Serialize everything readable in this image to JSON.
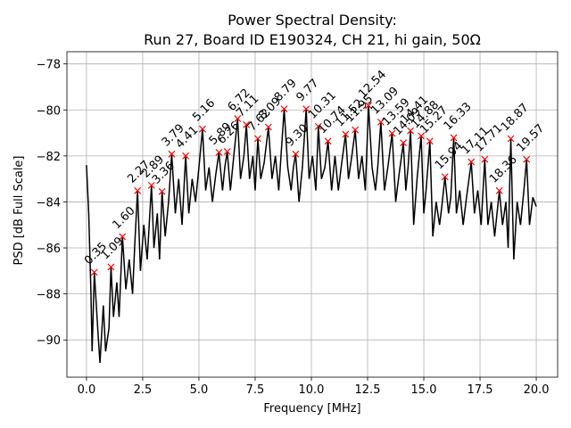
{
  "chart_data": {
    "type": "line",
    "title": "Power Spectral Density:",
    "subtitle": "Run 27, Board ID E190324, CH 21, hi gain, 50Ω",
    "xlabel": "Frequency [MHz]",
    "ylabel": "PSD [dB Full Scale]",
    "color": "#000000",
    "x": [
      0.0,
      0.1,
      0.2,
      0.25,
      0.35,
      0.5,
      0.6,
      0.75,
      0.85,
      1.0,
      1.09,
      1.2,
      1.35,
      1.45,
      1.6,
      1.75,
      1.9,
      2.05,
      2.15,
      2.27,
      2.4,
      2.55,
      2.7,
      2.89,
      3.0,
      3.15,
      3.25,
      3.36,
      3.5,
      3.65,
      3.79,
      3.95,
      4.1,
      4.25,
      4.41,
      4.55,
      4.7,
      4.85,
      5.0,
      5.16,
      5.3,
      5.45,
      5.6,
      5.75,
      5.89,
      6.05,
      6.15,
      6.26,
      6.4,
      6.55,
      6.72,
      6.85,
      7.0,
      7.11,
      7.25,
      7.4,
      7.5,
      7.62,
      7.75,
      7.9,
      8.09,
      8.25,
      8.4,
      8.55,
      8.65,
      8.79,
      8.95,
      9.1,
      9.2,
      9.3,
      9.45,
      9.6,
      9.77,
      9.9,
      10.05,
      10.2,
      10.31,
      10.45,
      10.6,
      10.74,
      10.9,
      11.05,
      11.2,
      11.35,
      11.52,
      11.65,
      11.8,
      11.95,
      12.1,
      12.25,
      12.4,
      12.54,
      12.7,
      12.85,
      12.95,
      13.09,
      13.25,
      13.4,
      13.59,
      13.75,
      13.9,
      14.09,
      14.2,
      14.3,
      14.41,
      14.55,
      14.7,
      14.88,
      15.0,
      15.1,
      15.27,
      15.4,
      15.55,
      15.7,
      15.8,
      15.94,
      16.1,
      16.2,
      16.33,
      16.45,
      16.6,
      16.75,
      16.9,
      17.11,
      17.25,
      17.4,
      17.55,
      17.71,
      17.85,
      18.0,
      18.15,
      18.36,
      18.5,
      18.65,
      18.75,
      18.87,
      19.0,
      19.15,
      19.3,
      19.45,
      19.57,
      19.7,
      19.85,
      20.0
    ],
    "values": [
      -82.4,
      -84.5,
      -88,
      -90.5,
      -87.06,
      -89.5,
      -91.0,
      -88.5,
      -90.5,
      -89.5,
      -86.83,
      -89.0,
      -87.5,
      -89.0,
      -85.51,
      -87.8,
      -86.5,
      -88.0,
      -85.8,
      -83.51,
      -87.0,
      -85.0,
      -86.5,
      -83.28,
      -86.0,
      -84.5,
      -86.5,
      -83.55,
      -85.5,
      -84.0,
      -81.92,
      -84.5,
      -83.0,
      -85.0,
      -82.0,
      -84.5,
      -83.0,
      -84.0,
      -82.5,
      -80.83,
      -83.5,
      -82.5,
      -84.0,
      -82.8,
      -81.85,
      -83.5,
      -82.5,
      -81.81,
      -83.5,
      -82.0,
      -80.38,
      -83.0,
      -82.0,
      -80.64,
      -83.0,
      -82.0,
      -83.5,
      -81.25,
      -83.0,
      -82.3,
      -80.75,
      -83.0,
      -82.0,
      -83.5,
      -82.0,
      -79.96,
      -82.5,
      -83.5,
      -82.5,
      -81.92,
      -84.0,
      -82.5,
      -79.96,
      -83.0,
      -82.0,
      -83.5,
      -80.72,
      -83.0,
      -82.5,
      -81.36,
      -83.5,
      -82.0,
      -83.5,
      -82.3,
      -81.06,
      -83.0,
      -82.0,
      -80.87,
      -83.0,
      -82.0,
      -83.5,
      -79.81,
      -82.5,
      -83.5,
      -82.5,
      -80.53,
      -83.5,
      -82.5,
      -81.02,
      -84.0,
      -82.8,
      -81.43,
      -83.5,
      -82.5,
      -80.91,
      -85.0,
      -83.0,
      -81.13,
      -84.5,
      -83.5,
      -81.36,
      -85.5,
      -84.0,
      -85.0,
      -84.2,
      -82.91,
      -84.5,
      -83.8,
      -81.21,
      -84.5,
      -83.5,
      -85.0,
      -83.8,
      -82.26,
      -84.5,
      -83.5,
      -85.0,
      -82.15,
      -85.0,
      -84.0,
      -85.5,
      -83.51,
      -85.0,
      -84.0,
      -86.0,
      -81.25,
      -86.5,
      -84.0,
      -85.0,
      -83.5,
      -82.15,
      -85.0,
      -83.8,
      -84.2
    ],
    "peaks": {
      "color": "#ff0000",
      "x": [
        0.35,
        1.09,
        1.6,
        2.27,
        2.89,
        3.36,
        3.79,
        4.41,
        5.16,
        5.89,
        6.26,
        6.72,
        7.11,
        7.62,
        8.09,
        8.79,
        9.3,
        9.77,
        10.31,
        10.74,
        11.52,
        11.95,
        12.54,
        13.09,
        13.59,
        14.09,
        14.41,
        14.88,
        15.27,
        15.94,
        16.33,
        17.11,
        17.71,
        18.36,
        18.87,
        19.57
      ],
      "values": [
        -87.06,
        -86.83,
        -85.51,
        -83.51,
        -83.28,
        -83.55,
        -81.92,
        -82.0,
        -80.83,
        -81.85,
        -81.81,
        -80.38,
        -80.64,
        -81.25,
        -80.75,
        -79.96,
        -81.92,
        -79.96,
        -80.72,
        -81.36,
        -81.06,
        -80.87,
        -79.81,
        -80.53,
        -81.02,
        -81.43,
        -80.91,
        -81.13,
        -81.36,
        -82.91,
        -81.21,
        -82.26,
        -82.15,
        -83.51,
        -81.25,
        -82.15
      ],
      "x_labels": [
        "0.35",
        "1.09",
        "1.60",
        "2.27",
        "2.89",
        "3.36",
        "3.79",
        "4.41",
        "5.16",
        "5.89",
        "6.26",
        "6.72",
        "7.11",
        "7.62",
        "8.09",
        "8.79",
        "9.30",
        "9.77",
        "10.31",
        "10.74",
        "11.52",
        "11.95",
        "12.54",
        "13.09",
        "13.59",
        "14.09",
        "14.41",
        "14.88",
        "15.27",
        "15.94",
        "16.33",
        "17.11",
        "17.71",
        "18.36",
        "18.87",
        "19.57"
      ]
    },
    "xlim": [
      -0.87,
      20.95
    ],
    "ylim": [
      -91.62,
      -77.47
    ],
    "xticks": [
      {
        "value": 0,
        "label": "0.0"
      },
      2.5,
      {
        "value": 5,
        "label": "5.0"
      },
      7.5,
      {
        "value": 10,
        "label": "10.0"
      },
      12.5,
      {
        "value": 15,
        "label": "15.0"
      },
      17.5,
      {
        "value": 20,
        "label": "20.0"
      }
    ],
    "yticks": [
      {
        "value": -90,
        "label": "−90"
      },
      {
        "value": -88,
        "label": "−88"
      },
      {
        "value": -86,
        "label": "−86"
      },
      {
        "value": -84,
        "label": "−84"
      },
      {
        "value": -82,
        "label": "−82"
      },
      {
        "value": -80,
        "label": "−80"
      },
      {
        "value": -78,
        "label": "−78"
      }
    ],
    "grid": true
  }
}
